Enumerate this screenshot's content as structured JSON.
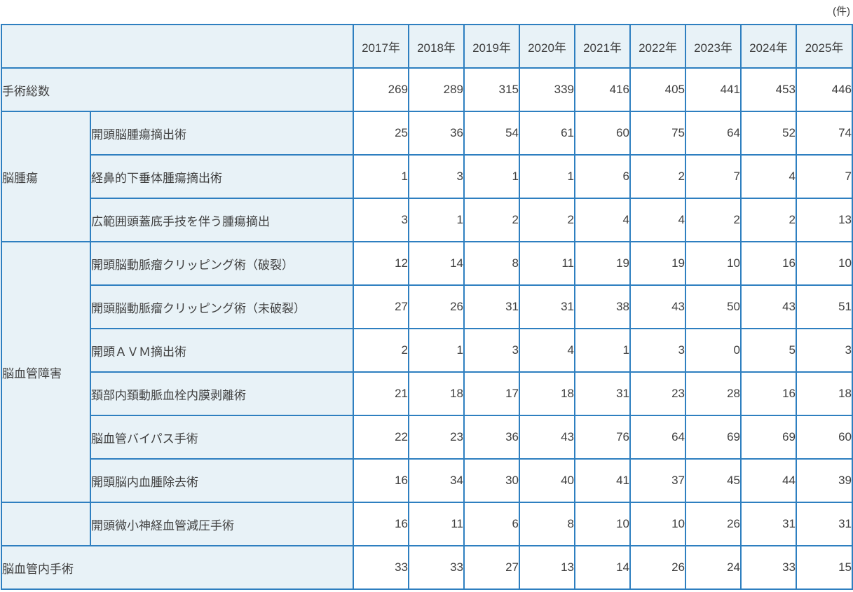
{
  "colors": {
    "border": "#2e7fc0",
    "cell_fill": "#e8f2f7",
    "text": "#404040",
    "background": "#ffffff"
  },
  "chart_data": {
    "type": "table",
    "unit_label": "(件)",
    "columns": [
      "2017年",
      "2018年",
      "2019年",
      "2020年",
      "2021年",
      "2022年",
      "2023年",
      "2024年",
      "2025年"
    ],
    "rows": [
      {
        "label": "手術総数",
        "label_colspan": 2,
        "values": [
          269,
          289,
          315,
          339,
          416,
          405,
          441,
          453,
          446
        ]
      },
      {
        "group": {
          "label": "脳腫瘍",
          "rowspan": 3
        },
        "label": "開頭脳腫瘍摘出術",
        "values": [
          25,
          36,
          54,
          61,
          60,
          75,
          64,
          52,
          74
        ]
      },
      {
        "label": "経鼻的下垂体腫瘍摘出術",
        "values": [
          1,
          3,
          1,
          1,
          6,
          2,
          7,
          4,
          7
        ]
      },
      {
        "label": "広範囲頭蓋底手技を伴う腫瘍摘出",
        "values": [
          3,
          1,
          2,
          2,
          4,
          4,
          2,
          2,
          13
        ]
      },
      {
        "group": {
          "label": "脳血管障害",
          "rowspan": 6
        },
        "label": "開頭脳動脈瘤クリッピング術（破裂）",
        "values": [
          12,
          14,
          8,
          11,
          19,
          19,
          10,
          16,
          10
        ]
      },
      {
        "label": "開頭脳動脈瘤クリッピング術（未破裂）",
        "values": [
          27,
          26,
          31,
          31,
          38,
          43,
          50,
          43,
          51
        ]
      },
      {
        "label": "開頭ＡＶＭ摘出術",
        "values": [
          2,
          1,
          3,
          4,
          1,
          3,
          0,
          5,
          3
        ]
      },
      {
        "label": "頚部内頚動脈血栓内膜剥離術",
        "values": [
          21,
          18,
          17,
          18,
          31,
          23,
          28,
          16,
          18
        ]
      },
      {
        "label": "脳血管バイパス手術",
        "values": [
          22,
          23,
          36,
          43,
          76,
          64,
          69,
          69,
          60
        ]
      },
      {
        "label": "開頭脳内血腫除去術",
        "values": [
          16,
          34,
          30,
          40,
          41,
          37,
          45,
          44,
          39
        ]
      },
      {
        "group": {
          "label": "",
          "rowspan": 1
        },
        "label": "開頭微小神経血管減圧手術",
        "values": [
          16,
          11,
          6,
          8,
          10,
          10,
          26,
          31,
          31
        ]
      },
      {
        "label": "脳血管内手術",
        "label_colspan": 2,
        "values": [
          33,
          33,
          27,
          13,
          14,
          26,
          24,
          33,
          15
        ]
      }
    ]
  }
}
